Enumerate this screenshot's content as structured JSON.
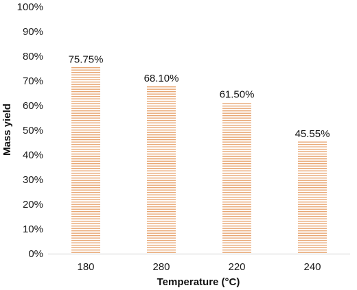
{
  "chart_data": {
    "type": "bar",
    "categories": [
      "180",
      "280",
      "220",
      "240"
    ],
    "values": [
      75.75,
      68.1,
      61.5,
      45.55
    ],
    "data_labels": [
      "75.75%",
      "68.10%",
      "61.50%",
      "45.55%"
    ],
    "title": "",
    "xlabel": "Temperature (°C)",
    "ylabel": "Mass yield",
    "ylim": [
      0,
      100
    ],
    "yticks": [
      0,
      10,
      20,
      30,
      40,
      50,
      60,
      70,
      80,
      90,
      100
    ],
    "ytick_labels": [
      "0%",
      "10%",
      "20%",
      "30%",
      "40%",
      "50%",
      "60%",
      "70%",
      "80%",
      "90%",
      "100%"
    ],
    "grid": false,
    "legend": "none",
    "bar_fill": "horizontal-stripes",
    "bar_stripe_color": "#e8a774",
    "bar_background_color": "#ffffff"
  }
}
